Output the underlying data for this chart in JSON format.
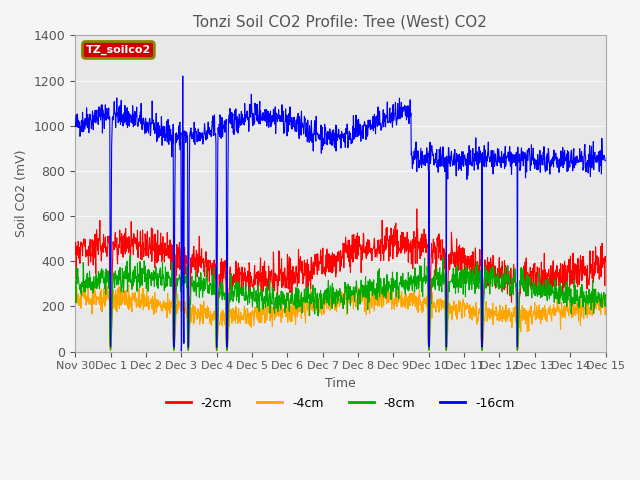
{
  "title": "Tonzi Soil CO2 Profile: Tree (West) CO2",
  "ylabel": "Soil CO2 (mV)",
  "xlabel": "Time",
  "legend_label": "TZ_soilco2",
  "ylim": [
    0,
    1400
  ],
  "background_color": "#f0f0f0",
  "plot_bg_color": "#e8e8e8",
  "series": {
    "neg2cm": {
      "label": "-2cm",
      "color": "#ff0000"
    },
    "neg4cm": {
      "label": "-4cm",
      "color": "#ffa500"
    },
    "neg8cm": {
      "label": "-8cm",
      "color": "#00aa00"
    },
    "neg16cm": {
      "label": "-16cm",
      "color": "#0000ff"
    }
  },
  "xtick_labels": [
    "Nov 30",
    "Dec 1",
    "Dec 2",
    "Dec 3",
    "Dec 4",
    "Dec 5",
    "Dec 6",
    "Dec 7",
    "Dec 8",
    "Dec 9",
    "Dec 10",
    "Dec 11",
    "Dec 12",
    "Dec 13",
    "Dec 14",
    "Dec 15"
  ],
  "n_points": 1440,
  "days": 15
}
